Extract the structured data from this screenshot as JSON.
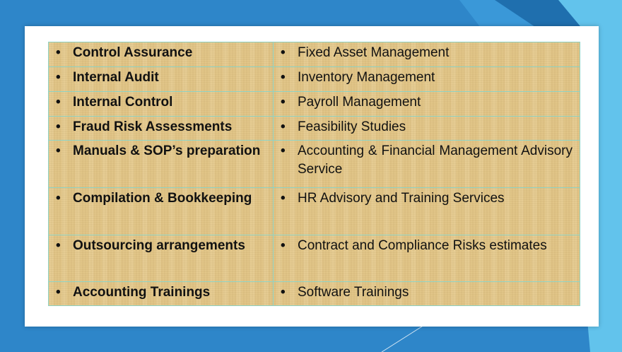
{
  "bullet": "•",
  "colors": {
    "background_blue": "#2e86c9",
    "accent_light_blue": "#62c3ec",
    "card": "#ffffff",
    "table_fill": "#e3c78a",
    "table_border": "#8fd3c4",
    "text": "#111111"
  },
  "services_table": {
    "rows": [
      {
        "left": "Control Assurance",
        "right": "Fixed Asset Management"
      },
      {
        "left": "Internal Audit",
        "right": "Inventory Management"
      },
      {
        "left": "Internal Control",
        "right": "Payroll Management"
      },
      {
        "left": "Fraud Risk Assessments",
        "right": "Feasibility Studies"
      },
      {
        "left": "Manuals & SOP’s preparation",
        "right": "Accounting & Financial Management Advisory Service"
      },
      {
        "left": "Compilation & Bookkeeping",
        "right": "HR Advisory and Training Services"
      },
      {
        "left": "Outsourcing arrangements",
        "right": "Contract and Compliance Risks estimates"
      },
      {
        "left": "Accounting Trainings",
        "right": "Software Trainings"
      }
    ]
  }
}
